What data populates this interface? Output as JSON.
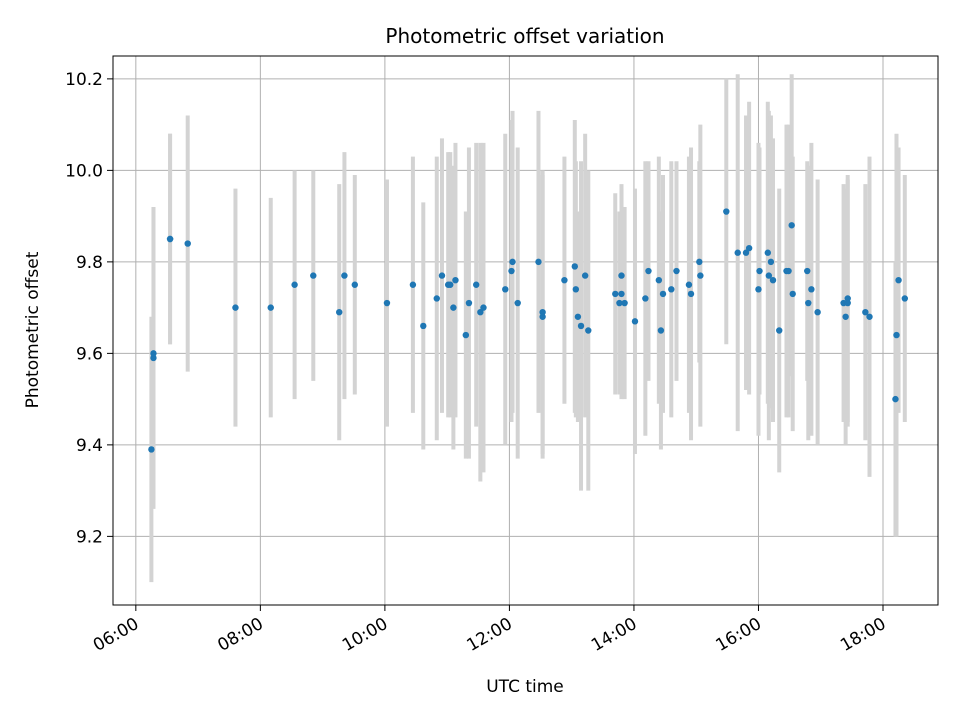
{
  "chart_data": {
    "type": "scatter",
    "title": "Photometric offset variation",
    "xlabel": "UTC time",
    "ylabel": "Photometric offset",
    "x_is_time": true,
    "xlim": [
      "05:38",
      "18:53"
    ],
    "ylim": [
      9.05,
      10.25
    ],
    "x_ticks": [
      "06:00",
      "08:00",
      "10:00",
      "12:00",
      "14:00",
      "16:00",
      "18:00"
    ],
    "y_ticks": [
      "9.2",
      "9.4",
      "9.6",
      "9.8",
      "10.0",
      "10.2"
    ],
    "grid": true,
    "legend": "none",
    "point_color": "#1f77b4",
    "errorbar_color": "#d3d3d3",
    "series": [
      {
        "x": [
          "06:15",
          "06:17",
          "06:17",
          "06:33",
          "06:33",
          "06:50",
          "07:36",
          "08:10",
          "08:33",
          "08:51",
          "09:16",
          "09:21",
          "09:31",
          "10:02",
          "10:27",
          "10:37",
          "10:50",
          "10:55",
          "11:01",
          "11:03",
          "11:06",
          "11:08",
          "11:18",
          "11:21",
          "11:28",
          "11:32",
          "11:35",
          "11:56",
          "12:02",
          "12:03",
          "12:08",
          "12:28",
          "12:32",
          "12:32",
          "12:53",
          "13:03",
          "13:04",
          "13:06",
          "13:09",
          "13:13",
          "13:16",
          "13:42",
          "13:46",
          "13:48",
          "13:48",
          "13:51",
          "14:01",
          "14:11",
          "14:14",
          "14:24",
          "14:26",
          "14:28",
          "14:36",
          "14:41",
          "14:53",
          "14:55",
          "15:03",
          "15:04",
          "15:29",
          "15:40",
          "15:48",
          "15:51",
          "16:00",
          "16:01",
          "16:09",
          "16:10",
          "16:12",
          "16:14",
          "16:20",
          "16:27",
          "16:29",
          "16:32",
          "16:33",
          "16:47",
          "16:48",
          "16:51",
          "16:57",
          "17:22",
          "17:24",
          "17:26",
          "17:26",
          "17:43",
          "17:47",
          "18:12",
          "18:13",
          "18:15",
          "18:21"
        ],
        "y": [
          9.39,
          9.59,
          9.6,
          9.85,
          9.85,
          9.84,
          9.7,
          9.7,
          9.75,
          9.77,
          9.69,
          9.77,
          9.75,
          9.71,
          9.75,
          9.66,
          9.72,
          9.77,
          9.75,
          9.75,
          9.7,
          9.76,
          9.64,
          9.71,
          9.75,
          9.69,
          9.7,
          9.74,
          9.78,
          9.8,
          9.71,
          9.8,
          9.69,
          9.68,
          9.76,
          9.79,
          9.74,
          9.68,
          9.66,
          9.77,
          9.65,
          9.73,
          9.71,
          9.73,
          9.77,
          9.71,
          9.67,
          9.72,
          9.78,
          9.76,
          9.65,
          9.73,
          9.74,
          9.78,
          9.75,
          9.73,
          9.8,
          9.77,
          9.91,
          9.82,
          9.82,
          9.83,
          9.74,
          9.78,
          9.82,
          9.77,
          9.8,
          9.76,
          9.65,
          9.78,
          9.78,
          9.88,
          9.73,
          9.78,
          9.71,
          9.74,
          9.69,
          9.71,
          9.68,
          9.72,
          9.71,
          9.69,
          9.68,
          9.5,
          9.64,
          9.76,
          9.72
        ],
        "err": [
          0.29,
          0.33,
          0.32,
          0.23,
          0.23,
          0.28,
          0.26,
          0.24,
          0.25,
          0.23,
          0.28,
          0.27,
          0.24,
          0.27,
          0.28,
          0.27,
          0.31,
          0.3,
          0.29,
          0.29,
          0.31,
          0.3,
          0.27,
          0.34,
          0.31,
          0.37,
          0.36,
          0.34,
          0.33,
          0.33,
          0.34,
          0.33,
          0.31,
          0.31,
          0.27,
          0.32,
          0.28,
          0.23,
          0.36,
          0.31,
          0.35,
          0.22,
          0.2,
          0.23,
          0.2,
          0.21,
          0.29,
          0.3,
          0.24,
          0.27,
          0.26,
          0.26,
          0.28,
          0.24,
          0.28,
          0.32,
          0.22,
          0.33,
          0.29,
          0.39,
          0.3,
          0.32,
          0.32,
          0.27,
          0.33,
          0.36,
          0.32,
          0.31,
          0.31,
          0.32,
          0.32,
          0.33,
          0.3,
          0.24,
          0.3,
          0.32,
          0.29,
          0.26,
          0.28,
          0.27,
          0.27,
          0.28,
          0.35,
          0.3,
          0.44,
          0.29,
          0.27
        ]
      }
    ]
  }
}
